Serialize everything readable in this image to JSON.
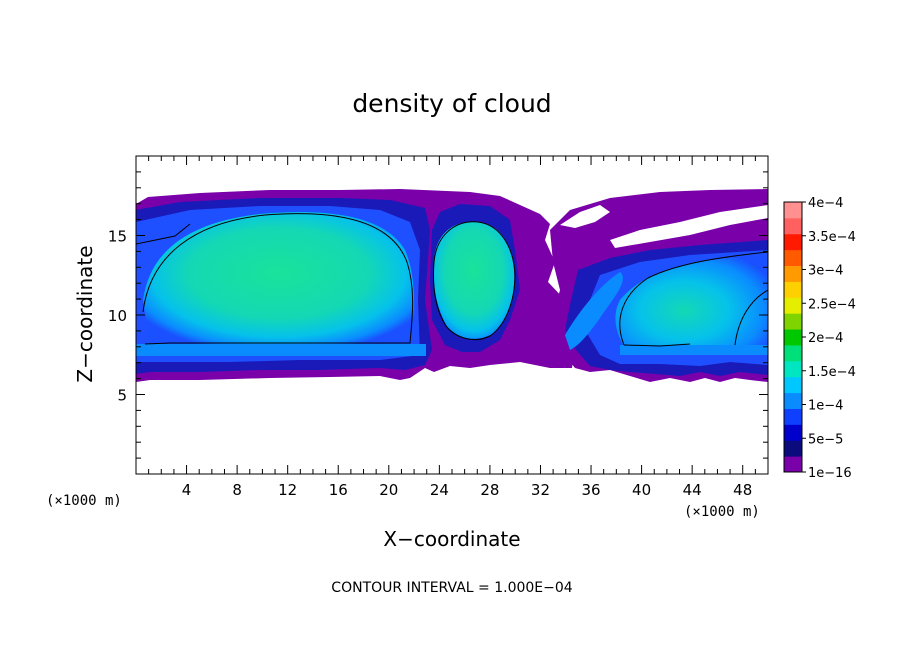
{
  "chart_data": {
    "type": "heatmap",
    "title": "density of cloud",
    "xlabel": "X−coordinate",
    "ylabel": "Z−coordinate",
    "x_unit_left": "(×1000 m)",
    "x_unit_right": "(×1000 m)",
    "xlim": [
      0,
      50
    ],
    "ylim": [
      0,
      20
    ],
    "x_ticks": [
      4,
      8,
      12,
      16,
      20,
      24,
      28,
      32,
      36,
      40,
      44,
      48
    ],
    "x_tick_labels": [
      "4",
      "8",
      "12",
      "16",
      "20",
      "24",
      "28",
      "32",
      "36",
      "40",
      "44",
      "48"
    ],
    "y_ticks": [
      5,
      10,
      15
    ],
    "y_tick_labels": [
      "5",
      "10",
      "15"
    ],
    "footer": "CONTOUR INTERVAL = 1.000E−04",
    "colorbar": {
      "labels": [
        "4e−4",
        "3.5e−4",
        "3e−4",
        "2.5e−4",
        "2e−4",
        "1.5e−4",
        "1e−4",
        "5e−5",
        "1e−16"
      ],
      "values": [
        0.0004,
        0.00035,
        0.0003,
        0.00025,
        0.0002,
        0.00015,
        0.0001,
        5e-05,
        1e-16
      ],
      "colors": [
        "#7a00aa",
        "#0b0b7e",
        "#0000cc",
        "#1040ff",
        "#0a8cff",
        "#00c8ff",
        "#00e6c0",
        "#00e07a",
        "#00c800",
        "#7fd400",
        "#e6ee00",
        "#ffd000",
        "#ff9a00",
        "#ff5a00",
        "#ff1a00",
        "#ff6060",
        "#ff9090"
      ]
    }
  }
}
